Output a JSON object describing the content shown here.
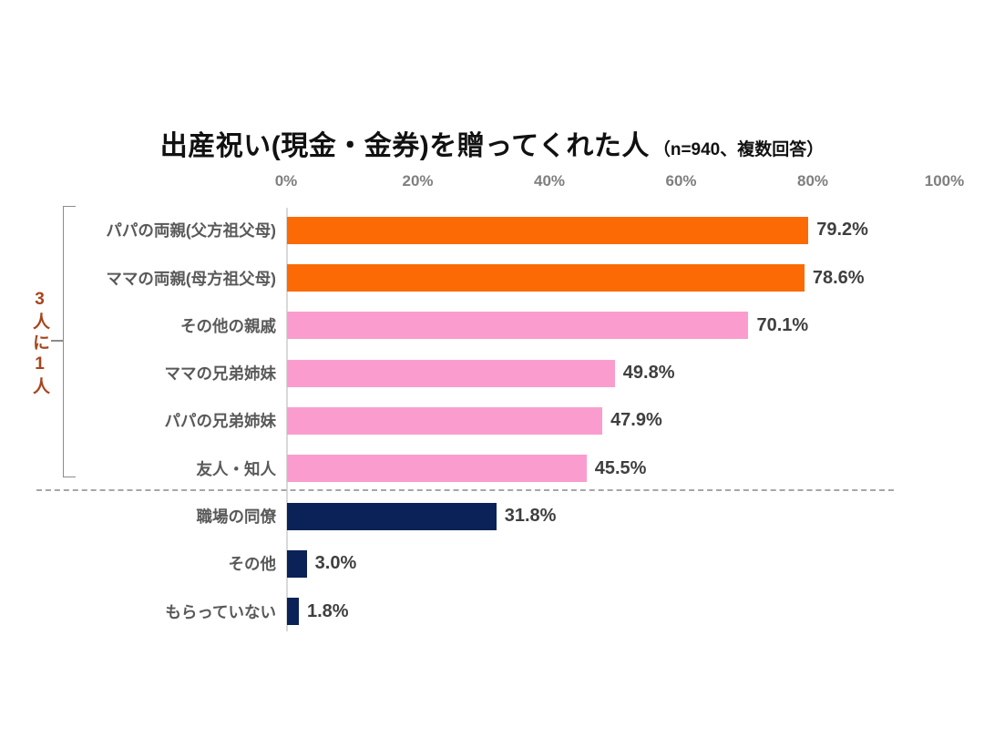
{
  "title": {
    "main": "出産祝い(現金・金券)を贈ってくれた人",
    "note": "（n=940、複数回答）"
  },
  "annotation": {
    "text": "3人に1人"
  },
  "chart_data": {
    "type": "bar",
    "orientation": "horizontal",
    "title": "出産祝い(現金・金券)を贈ってくれた人",
    "subtitle": "（n=940、複数回答）",
    "sample_size": 940,
    "categories": [
      "パパの両親(父方祖父母)",
      "ママの両親(母方祖父母)",
      "その他の親戚",
      "ママの兄弟姉妹",
      "パパの兄弟姉妹",
      "友人・知人",
      "職場の同僚",
      "その他",
      "もらっていない"
    ],
    "values": [
      79.2,
      78.6,
      70.1,
      49.8,
      47.9,
      45.5,
      31.8,
      3.0,
      1.8
    ],
    "value_labels": [
      "79.2%",
      "78.6%",
      "70.1%",
      "49.8%",
      "47.9%",
      "45.5%",
      "31.8%",
      "3.0%",
      "1.8%"
    ],
    "bar_colors": [
      "#FB6A04",
      "#FB6A04",
      "#FA9DCE",
      "#FA9DCE",
      "#FA9DCE",
      "#FA9DCE",
      "#0A2257",
      "#0A2257",
      "#0A2257"
    ],
    "x_ticks": [
      "0%",
      "20%",
      "40%",
      "60%",
      "80%",
      "100%"
    ],
    "xlim": [
      0,
      100
    ],
    "grid": false,
    "legend": false,
    "annotation": "3人に1人",
    "annotation_covers_first_n_categories": 6
  },
  "colors": {
    "orange": "#FB6A04",
    "pink": "#FA9DCE",
    "navy": "#0A2257",
    "annotation_text": "#A8441C",
    "category_label": "#595959",
    "value_label": "#3F3F3F",
    "tick_label": "#7F7F7F",
    "axis_line": "#D9D9D9",
    "bracket": "#8C8C8C",
    "separator": "#A6A6A6",
    "background": "#FFFFFF"
  }
}
